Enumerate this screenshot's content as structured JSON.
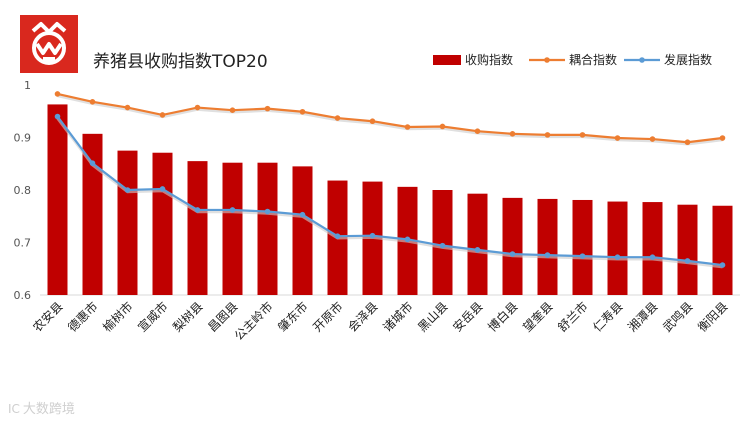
{
  "logo_color": "#d9281e",
  "chart_data": {
    "type": "bar",
    "title": "养猪县收购指数TOP20",
    "categories": [
      "农安县",
      "德惠市",
      "榆树市",
      "宣威市",
      "梨树县",
      "昌图县",
      "公主岭市",
      "肇东市",
      "开原市",
      "会泽县",
      "诸城市",
      "黑山县",
      "安岳县",
      "博白县",
      "望奎县",
      "舒兰市",
      "仁寿县",
      "湘潭县",
      "武鸣县",
      "衡阳县"
    ],
    "series": [
      {
        "name": "收购指数",
        "kind": "bar",
        "color": "#c00000",
        "values": [
          0.963,
          0.907,
          0.875,
          0.871,
          0.855,
          0.852,
          0.852,
          0.845,
          0.818,
          0.816,
          0.806,
          0.8,
          0.793,
          0.785,
          0.783,
          0.781,
          0.778,
          0.777,
          0.772,
          0.77
        ]
      },
      {
        "name": "耦合指数",
        "kind": "line",
        "color": "#ed7d31",
        "values": [
          0.983,
          0.968,
          0.957,
          0.943,
          0.957,
          0.952,
          0.955,
          0.949,
          0.937,
          0.931,
          0.92,
          0.921,
          0.912,
          0.907,
          0.905,
          0.905,
          0.899,
          0.897,
          0.891,
          0.899
        ]
      },
      {
        "name": "发展指数",
        "kind": "line",
        "color": "#5b9bd5",
        "values": [
          0.94,
          0.851,
          0.8,
          0.802,
          0.762,
          0.762,
          0.759,
          0.753,
          0.712,
          0.713,
          0.706,
          0.694,
          0.686,
          0.678,
          0.676,
          0.674,
          0.672,
          0.672,
          0.665,
          0.657
        ]
      }
    ],
    "xlabel": "",
    "ylabel": "",
    "ylim": [
      0.6,
      1
    ],
    "yticks": [
      "0.6",
      "0.7",
      "0.8",
      "0.9",
      "1"
    ],
    "grid": false,
    "legend": "top-right"
  },
  "watermark": {
    "mark": "IC",
    "text": "大数跨境"
  }
}
